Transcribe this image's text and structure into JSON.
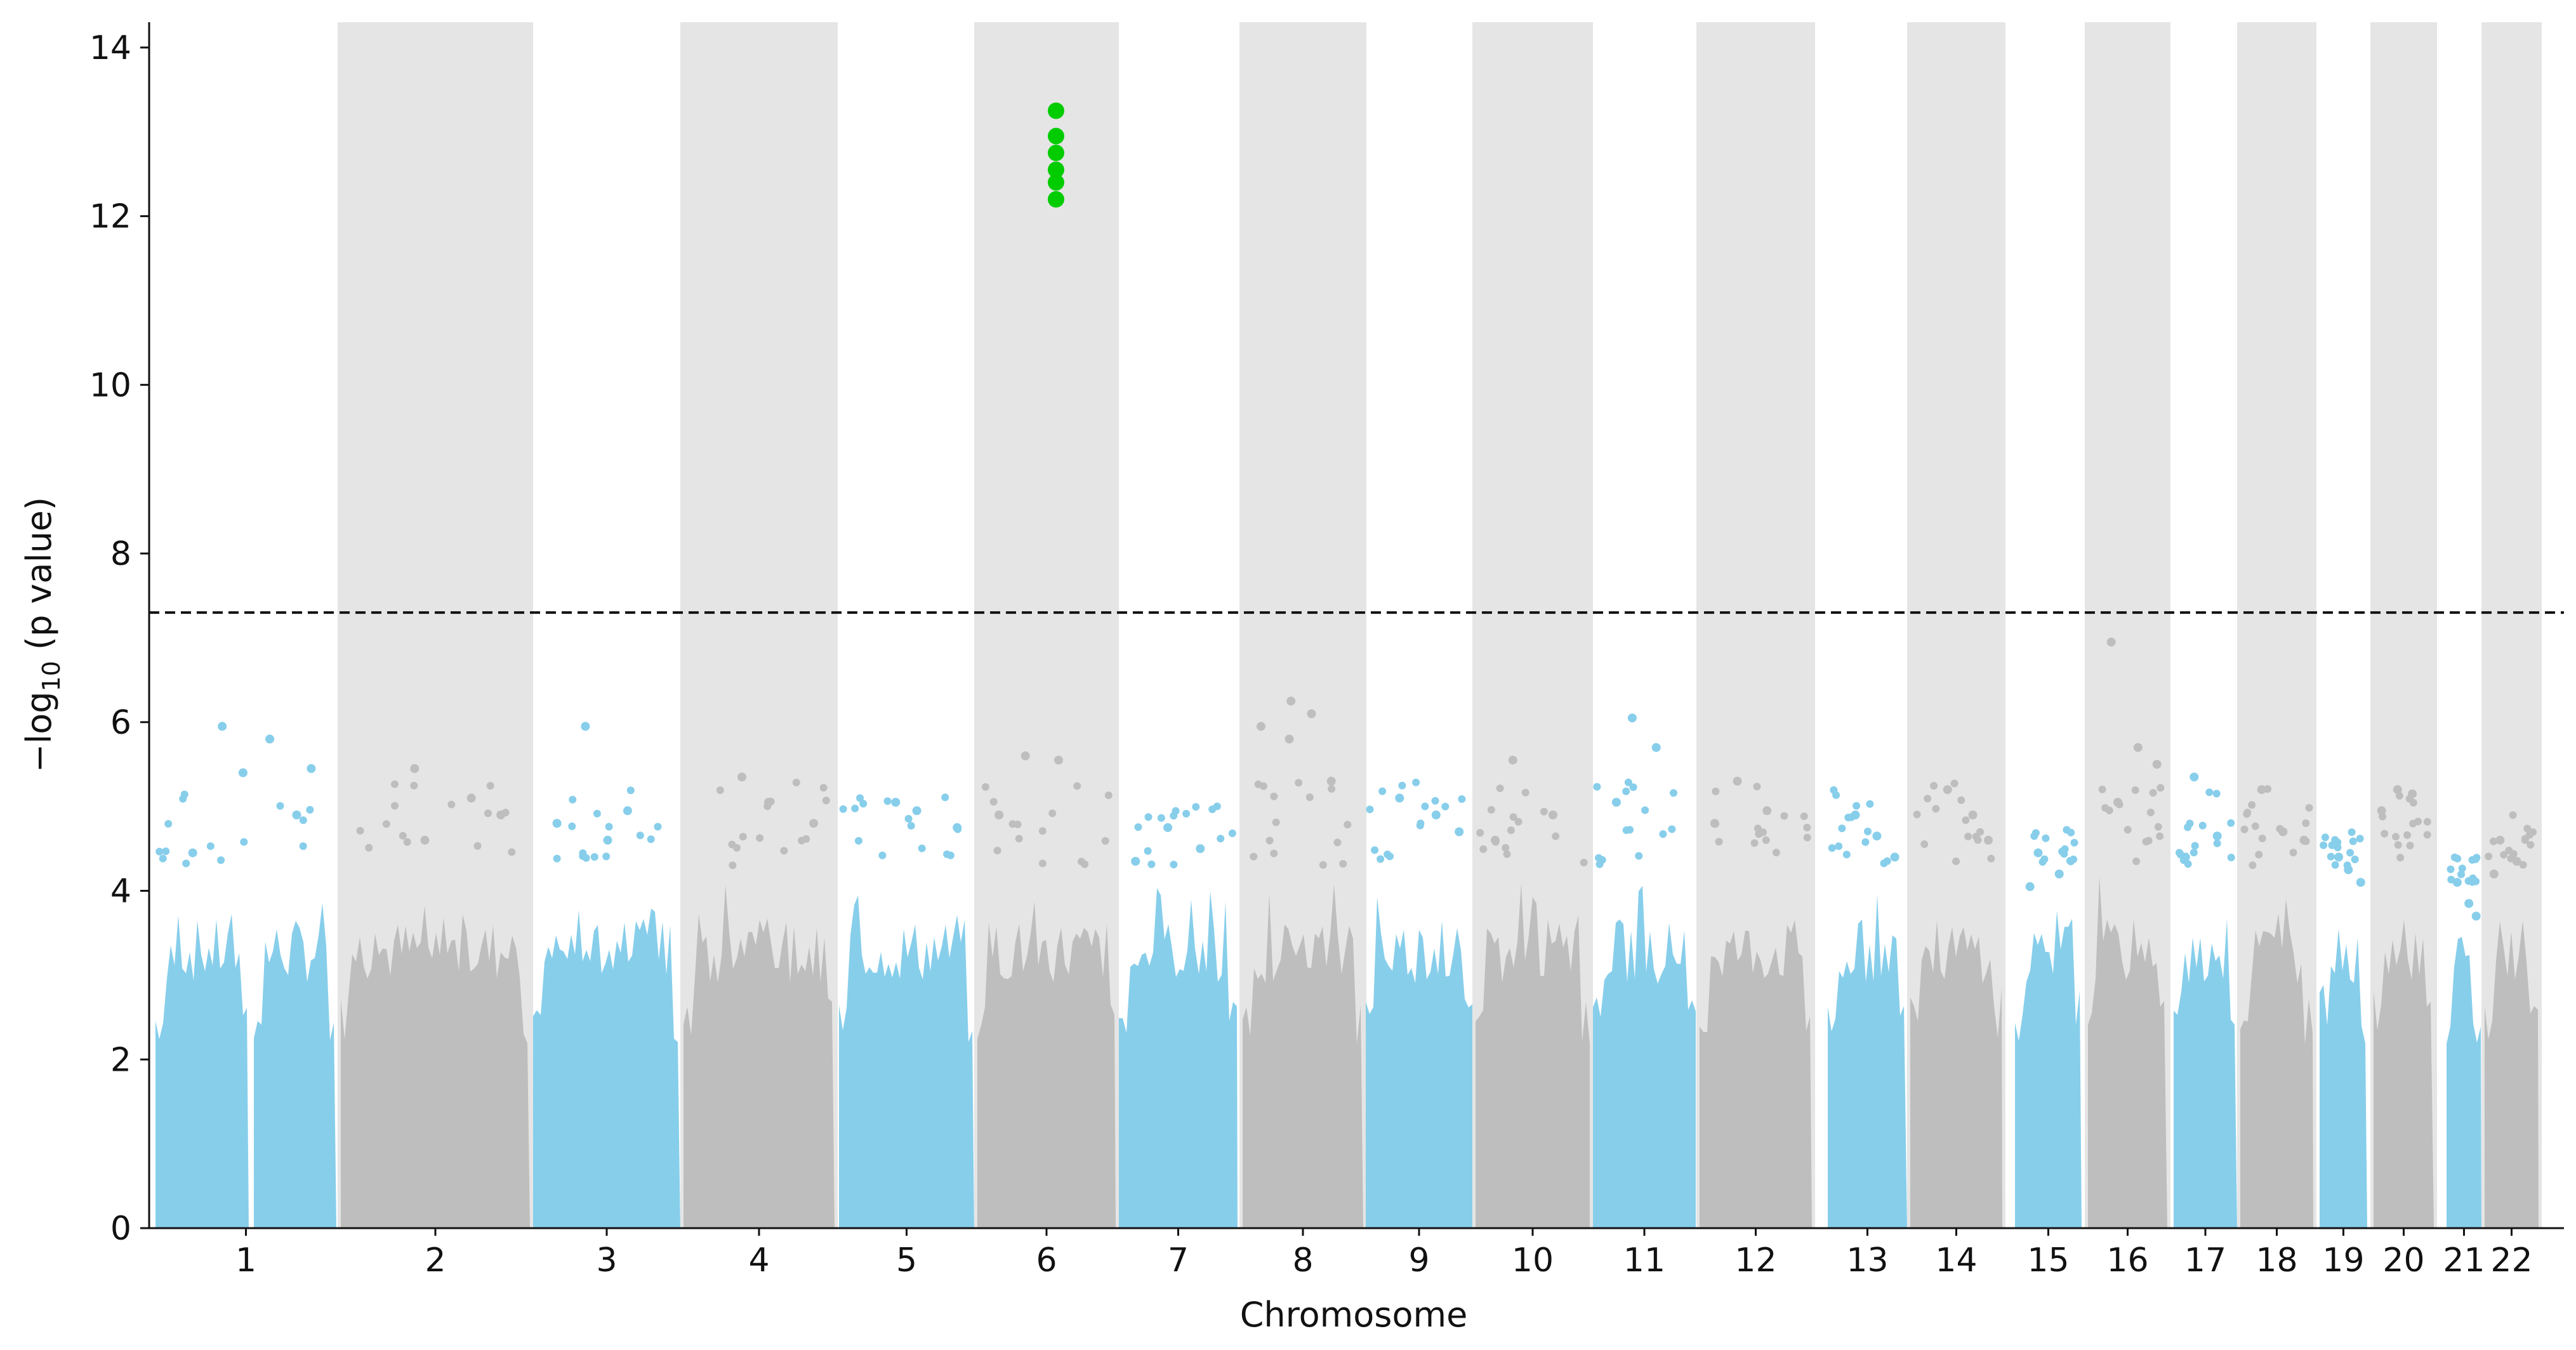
{
  "chart_data": {
    "type": "scatter",
    "subtype": "manhattan",
    "xlabel": "Chromosome",
    "ylabel_main": "−log",
    "ylabel_sub": "10",
    "ylabel_rest": " (p value)",
    "ylim": [
      0,
      14.3
    ],
    "yticks": [
      0,
      2,
      4,
      6,
      8,
      10,
      12,
      14
    ],
    "threshold": 7.3,
    "threshold_style": "dashed",
    "colors": {
      "odd": "#87ceeb",
      "even": "#bebebe",
      "band": "#e5e5e5",
      "significant": "#00cc00",
      "threshold": "#111111"
    },
    "chromosomes": [
      {
        "label": "1",
        "min": 0,
        "max": 5.95,
        "tops": [
          5.95,
          5.8,
          5.45,
          5.4,
          4.9,
          4.45
        ]
      },
      {
        "label": "2",
        "min": 0,
        "max": 5.45,
        "tops": [
          5.45,
          5.1,
          4.9,
          4.6
        ]
      },
      {
        "label": "3",
        "min": 0,
        "max": 5.95,
        "tops": [
          5.95,
          4.95,
          4.8,
          4.6
        ]
      },
      {
        "label": "4",
        "min": 0,
        "max": 5.35,
        "tops": [
          5.35,
          5.05,
          4.8
        ]
      },
      {
        "label": "5",
        "min": 0,
        "max": 5.05,
        "tops": [
          5.05,
          4.95,
          4.75
        ]
      },
      {
        "label": "6",
        "min": 0,
        "max": 13.25,
        "tops": [
          5.6,
          5.55,
          4.9
        ]
      },
      {
        "label": "7",
        "min": 0,
        "max": 4.75,
        "tops": [
          4.75,
          4.5,
          4.35
        ]
      },
      {
        "label": "8",
        "min": 0,
        "max": 6.25,
        "tops": [
          6.25,
          6.1,
          5.95,
          5.8,
          5.3
        ]
      },
      {
        "label": "9",
        "min": 0,
        "max": 5.1,
        "tops": [
          5.1,
          4.9,
          4.7
        ]
      },
      {
        "label": "10",
        "min": 0,
        "max": 5.55,
        "tops": [
          5.55,
          4.9,
          4.6
        ]
      },
      {
        "label": "11",
        "min": 0,
        "max": 6.05,
        "tops": [
          6.05,
          5.7,
          5.05
        ]
      },
      {
        "label": "12",
        "min": 0,
        "max": 5.3,
        "tops": [
          5.3,
          4.95,
          4.8
        ]
      },
      {
        "label": "13",
        "min": 0,
        "max": 4.9,
        "tops": [
          4.9,
          4.65,
          4.4
        ]
      },
      {
        "label": "14",
        "min": 0,
        "max": 5.2,
        "tops": [
          5.2,
          4.9,
          4.6
        ]
      },
      {
        "label": "15",
        "min": 0,
        "max": 4.45,
        "tops": [
          4.45,
          4.2,
          4.05
        ]
      },
      {
        "label": "16",
        "min": 0,
        "max": 6.95,
        "tops": [
          6.95,
          5.7,
          5.5,
          5.05
        ]
      },
      {
        "label": "17",
        "min": 0,
        "max": 5.35,
        "tops": [
          5.35,
          4.65,
          4.4
        ]
      },
      {
        "label": "18",
        "min": 0,
        "max": 5.2,
        "tops": [
          5.2,
          4.7,
          4.6
        ]
      },
      {
        "label": "19",
        "min": 0,
        "max": 4.4,
        "tops": [
          4.4,
          4.25,
          4.1
        ]
      },
      {
        "label": "20",
        "min": 0,
        "max": 5.2,
        "tops": [
          5.2,
          5.15,
          4.95
        ]
      },
      {
        "label": "21",
        "min": 0,
        "max": 4.1,
        "tops": [
          4.1,
          3.85,
          3.7
        ]
      },
      {
        "label": "22",
        "min": 0,
        "max": 4.6,
        "tops": [
          4.6,
          4.35,
          4.2
        ]
      }
    ],
    "significant_points": {
      "chromosome": "6",
      "values": [
        13.25,
        12.95,
        12.75,
        12.55,
        12.4,
        12.2
      ]
    }
  }
}
